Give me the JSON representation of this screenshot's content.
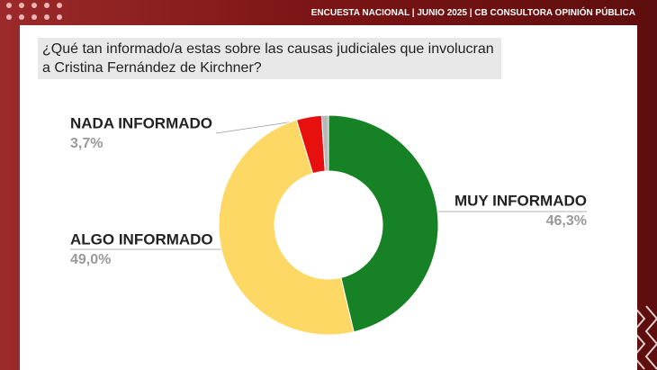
{
  "header": {
    "text": "ENCUESTA NACIONAL | JUNIO 2025 | CB CONSULTORA OPINIÓN PÚBLICA"
  },
  "chart_data": {
    "type": "donut",
    "title": "¿Qué tan informado/a estas sobre las causas judiciales que involucran a Cristina Fernández de Kirchner?",
    "categories": [
      "MUY INFORMADO",
      "ALGO INFORMADO",
      "NADA INFORMADO",
      null
    ],
    "values": [
      46.3,
      49.0,
      3.7,
      1.0
    ],
    "value_labels": [
      "46,3%",
      "49,0%",
      "3,7%",
      null
    ],
    "colors": [
      "#168225",
      "#fed865",
      "#e80f0f",
      "#b8b8b8"
    ]
  }
}
